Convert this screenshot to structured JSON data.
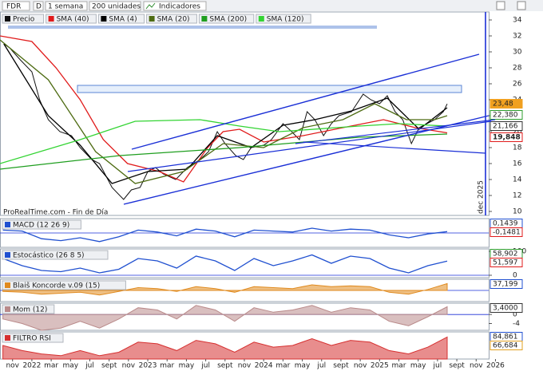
{
  "toolbar": {
    "symbol": "FDR",
    "mode": "D",
    "period": "1 semana",
    "units": "200 unidades",
    "indicators": "Indicadores"
  },
  "chart_data": [
    {
      "type": "line",
      "source": "ProRealTime.com - Fin de Día",
      "marker_label": "dec 2025",
      "xlim": [
        -3.3,
        47.3
      ],
      "ylim": [
        9.5,
        35
      ],
      "yticks": [
        10,
        12,
        14,
        16,
        18,
        20,
        22,
        24,
        26,
        28,
        30,
        32,
        34
      ],
      "series": [
        {
          "name": "Precio",
          "color": "#111111",
          "x": [
            -2.9,
            -2.3,
            -1.2,
            0,
            0.8,
            1.7,
            2.9,
            4.1,
            5,
            6.2,
            7,
            8.3,
            9.5,
            10.3,
            11.2,
            12,
            12.8,
            13.6,
            14.9,
            16.1,
            17.4,
            18.3,
            19.2,
            20,
            21.1,
            21.9,
            22.7,
            24,
            24.8,
            26,
            26.9,
            27.7,
            28.5,
            29.3,
            30.2,
            31,
            31.8,
            33.1,
            34.3,
            35.1,
            36,
            36.8,
            37.6,
            38.4,
            39.3,
            40.1,
            40.9,
            41.7,
            42.6,
            43
          ],
          "values": [
            31,
            30.5,
            29,
            27.5,
            24,
            21.5,
            20,
            19.5,
            18,
            16.5,
            16,
            13,
            11.5,
            12.7,
            13,
            15,
            15.5,
            14.7,
            14,
            15.5,
            16.5,
            17.5,
            20,
            18.5,
            17,
            16.5,
            18,
            18.3,
            19,
            21,
            20,
            19,
            22.5,
            21.5,
            19.5,
            21,
            22,
            22.5,
            24.7,
            24,
            23.5,
            24.5,
            22.5,
            21.5,
            18.5,
            20.5,
            21,
            21.5,
            22.5,
            23.48
          ]
        },
        {
          "name": "SMA (40)",
          "color": "#e01b1b",
          "x": [
            -3.3,
            0,
            2.5,
            5,
            7.4,
            9.9,
            13.2,
            15.7,
            18.2,
            19.8,
            21.5,
            24,
            28.1,
            32.2,
            36.4,
            39.7,
            43
          ],
          "values": [
            32,
            31.3,
            28,
            24,
            19,
            16,
            15,
            13.7,
            18,
            20,
            20.3,
            18.7,
            19.5,
            20.5,
            21.5,
            20.5,
            19.848
          ]
        },
        {
          "name": "SMA (4)",
          "color": "#000000",
          "x": [
            -2.9,
            1.7,
            5,
            8.3,
            12,
            16.1,
            19.2,
            22.7,
            26,
            29.3,
            33.1,
            36.8,
            40.1,
            43
          ],
          "values": [
            31,
            22,
            18.3,
            13.5,
            15,
            15.3,
            19.5,
            18,
            20.8,
            21.5,
            22.6,
            24.2,
            20.3,
            23
          ]
        },
        {
          "name": "SMA (20)",
          "color": "#4d6b12",
          "x": [
            -3.3,
            1.7,
            6.6,
            10.7,
            15.7,
            19.8,
            24,
            28.1,
            32.2,
            35.5,
            38.8,
            41.7,
            43
          ],
          "values": [
            31.5,
            26.5,
            17.5,
            13.5,
            15,
            18.5,
            18,
            20.5,
            21.5,
            23.5,
            21.5,
            21.5,
            22
          ]
        },
        {
          "name": "SMA (200)",
          "color": "#1f9e1f",
          "x": [
            -3.3,
            9.1,
            21.5,
            33.9,
            43
          ],
          "values": [
            15.3,
            17,
            18,
            19.3,
            19.7
          ]
        },
        {
          "name": "SMA (120)",
          "color": "#33d433",
          "x": [
            -3.3,
            5,
            10.7,
            17.4,
            21.5,
            25.6,
            33.9,
            38,
            43
          ],
          "values": [
            16,
            19,
            21.3,
            21.5,
            20.7,
            20,
            20.7,
            21,
            20.7
          ]
        }
      ],
      "side_labels": [
        {
          "text": "23,48",
          "color": "#f0a020"
        },
        {
          "text": "22,380",
          "color": "#2e9e2e"
        },
        {
          "text": "21,166",
          "color": "#333333"
        },
        {
          "text": "19,848",
          "color": "#e01b1b"
        }
      ]
    },
    {
      "type": "line",
      "title": "MACD (12 26 9)",
      "ylim": [
        -1.5,
        1.5
      ],
      "x": [
        -3,
        -1,
        1,
        3,
        5,
        7,
        9,
        11,
        13,
        15,
        17,
        19,
        21,
        23,
        25,
        27,
        29,
        31,
        33,
        35,
        37,
        39,
        41,
        43
      ],
      "series": [
        {
          "color": "#2050d0",
          "values": [
            0.3,
            0.2,
            -0.6,
            -0.8,
            -0.5,
            -0.9,
            -0.4,
            0.3,
            0.1,
            -0.3,
            0.4,
            0.2,
            -0.4,
            0.3,
            0.2,
            0.1,
            0.5,
            0.2,
            0.4,
            0.3,
            -0.2,
            -0.5,
            -0.1,
            0.14
          ]
        }
      ],
      "side_labels": [
        {
          "text": "0,1439",
          "color": "#2050d0"
        },
        {
          "text": "-0,1481",
          "color": "#e01b1b"
        }
      ]
    },
    {
      "type": "line",
      "title": "Estocástico (26 8 5)",
      "ylim": [
        -10,
        110
      ],
      "yticks": [
        0,
        100
      ],
      "x": [
        -3,
        -1,
        1,
        3,
        5,
        7,
        9,
        11,
        13,
        15,
        17,
        19,
        21,
        23,
        25,
        27,
        29,
        31,
        33,
        35,
        37,
        39,
        41,
        43
      ],
      "series": [
        {
          "color": "#2050d0",
          "values": [
            70,
            40,
            20,
            15,
            30,
            10,
            25,
            70,
            60,
            30,
            80,
            60,
            20,
            70,
            40,
            60,
            85,
            50,
            80,
            70,
            30,
            10,
            40,
            59
          ]
        }
      ],
      "side_labels": [
        {
          "text": "58,902",
          "color": "#2e9e2e"
        },
        {
          "text": "51,597",
          "color": "#e01b1b"
        }
      ]
    },
    {
      "type": "area",
      "title": "Blaiš Koncorde v.09 (15)",
      "ylim": [
        -60,
        60
      ],
      "x": [
        -3,
        -1,
        1,
        3,
        5,
        7,
        9,
        11,
        13,
        15,
        17,
        19,
        21,
        23,
        25,
        27,
        29,
        31,
        33,
        35,
        37,
        39,
        41,
        43
      ],
      "series": [
        {
          "color": "#e08a1e",
          "values": [
            -5,
            -10,
            -20,
            -15,
            -10,
            -25,
            -5,
            15,
            10,
            -5,
            20,
            10,
            -10,
            20,
            15,
            10,
            30,
            20,
            25,
            20,
            -10,
            -20,
            5,
            37
          ]
        }
      ],
      "side_labels": [
        {
          "text": "37,199",
          "color": "#2050d0"
        }
      ]
    },
    {
      "type": "area",
      "title": "Mom (12)",
      "ylim": [
        -7,
        5
      ],
      "yticks": [
        0,
        -4
      ],
      "x": [
        -3,
        -1,
        1,
        3,
        5,
        7,
        9,
        11,
        13,
        15,
        17,
        19,
        21,
        23,
        25,
        27,
        29,
        31,
        33,
        35,
        37,
        39,
        41,
        43
      ],
      "series": [
        {
          "color": "#b98a8a",
          "values": [
            -2,
            -4,
            -7,
            -6,
            -3,
            -6,
            -2,
            3,
            2,
            -2,
            4,
            2,
            -3,
            3,
            1,
            2,
            4,
            1,
            3,
            2,
            -3,
            -5,
            -1,
            3.4
          ]
        }
      ],
      "side_labels": [
        {
          "text": "3,4000",
          "color": "#333333"
        }
      ]
    },
    {
      "type": "area",
      "title": "FILTRO RSI",
      "ylim": [
        20,
        100
      ],
      "x": [
        -3,
        -1,
        1,
        3,
        5,
        7,
        9,
        11,
        13,
        15,
        17,
        19,
        21,
        23,
        25,
        27,
        29,
        31,
        33,
        35,
        37,
        39,
        41,
        43
      ],
      "series": [
        {
          "color": "#d63030",
          "values": [
            60,
            45,
            35,
            30,
            45,
            30,
            40,
            70,
            65,
            45,
            75,
            65,
            40,
            70,
            55,
            60,
            80,
            60,
            75,
            70,
            45,
            35,
            55,
            85
          ]
        }
      ],
      "side_labels": [
        {
          "text": "84,861",
          "color": "#2050d0"
        },
        {
          "text": "66,684",
          "color": "#e0a020"
        }
      ],
      "xticks": [
        {
          "value": -2,
          "label": "nov"
        },
        {
          "value": 0,
          "label": "2022"
        },
        {
          "value": 2,
          "label": "mar"
        },
        {
          "value": 4,
          "label": "may"
        },
        {
          "value": 6,
          "label": "jul"
        },
        {
          "value": 8,
          "label": "sept"
        },
        {
          "value": 10,
          "label": "nov"
        },
        {
          "value": 12,
          "label": "2023"
        },
        {
          "value": 14,
          "label": "mar"
        },
        {
          "value": 16,
          "label": "may"
        },
        {
          "value": 18,
          "label": "jul"
        },
        {
          "value": 20,
          "label": "sept"
        },
        {
          "value": 22,
          "label": "nov"
        },
        {
          "value": 24,
          "label": "2024"
        },
        {
          "value": 26,
          "label": "mar"
        },
        {
          "value": 28,
          "label": "may"
        },
        {
          "value": 30,
          "label": "jul"
        },
        {
          "value": 32,
          "label": "sept"
        },
        {
          "value": 34,
          "label": "nov"
        },
        {
          "value": 36,
          "label": "2025"
        },
        {
          "value": 38,
          "label": "mar"
        },
        {
          "value": 40,
          "label": "may"
        },
        {
          "value": 42,
          "label": "jul"
        },
        {
          "value": 44,
          "label": "sept"
        },
        {
          "value": 46,
          "label": "nov"
        },
        {
          "value": 48,
          "label": "2026"
        }
      ]
    }
  ]
}
